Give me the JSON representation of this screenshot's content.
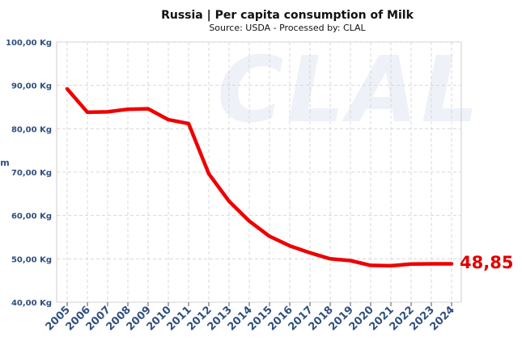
{
  "chart_data": {
    "type": "line",
    "title": "Russia | Per capita consumption of Milk",
    "subtitle": "Source: USDA - Processed by: CLAL",
    "watermark": "CLAL",
    "ylabel": "m",
    "x": [
      "2005",
      "2006",
      "2007",
      "2008",
      "2009",
      "2010",
      "2011",
      "2012",
      "2013",
      "2014",
      "2015",
      "2016",
      "2017",
      "2018",
      "2019",
      "2020",
      "2021",
      "2022",
      "2023",
      "2024"
    ],
    "series": [
      {
        "values": [
          89.2,
          83.8,
          83.9,
          84.5,
          84.6,
          82.1,
          81.2,
          69.6,
          63.3,
          58.7,
          55.2,
          53.0,
          51.4,
          50.0,
          49.6,
          48.5,
          48.4,
          48.8,
          48.85,
          48.85
        ],
        "color": "#ee0000"
      }
    ],
    "ylim": [
      40,
      100
    ],
    "yticks": [
      "40,00 Kg",
      "50,00 Kg",
      "60,00 Kg",
      "70,00 Kg",
      "80,00 Kg",
      "90,00 Kg",
      "100,00 Kg"
    ],
    "last_value_label": "48,85",
    "grid": true
  }
}
